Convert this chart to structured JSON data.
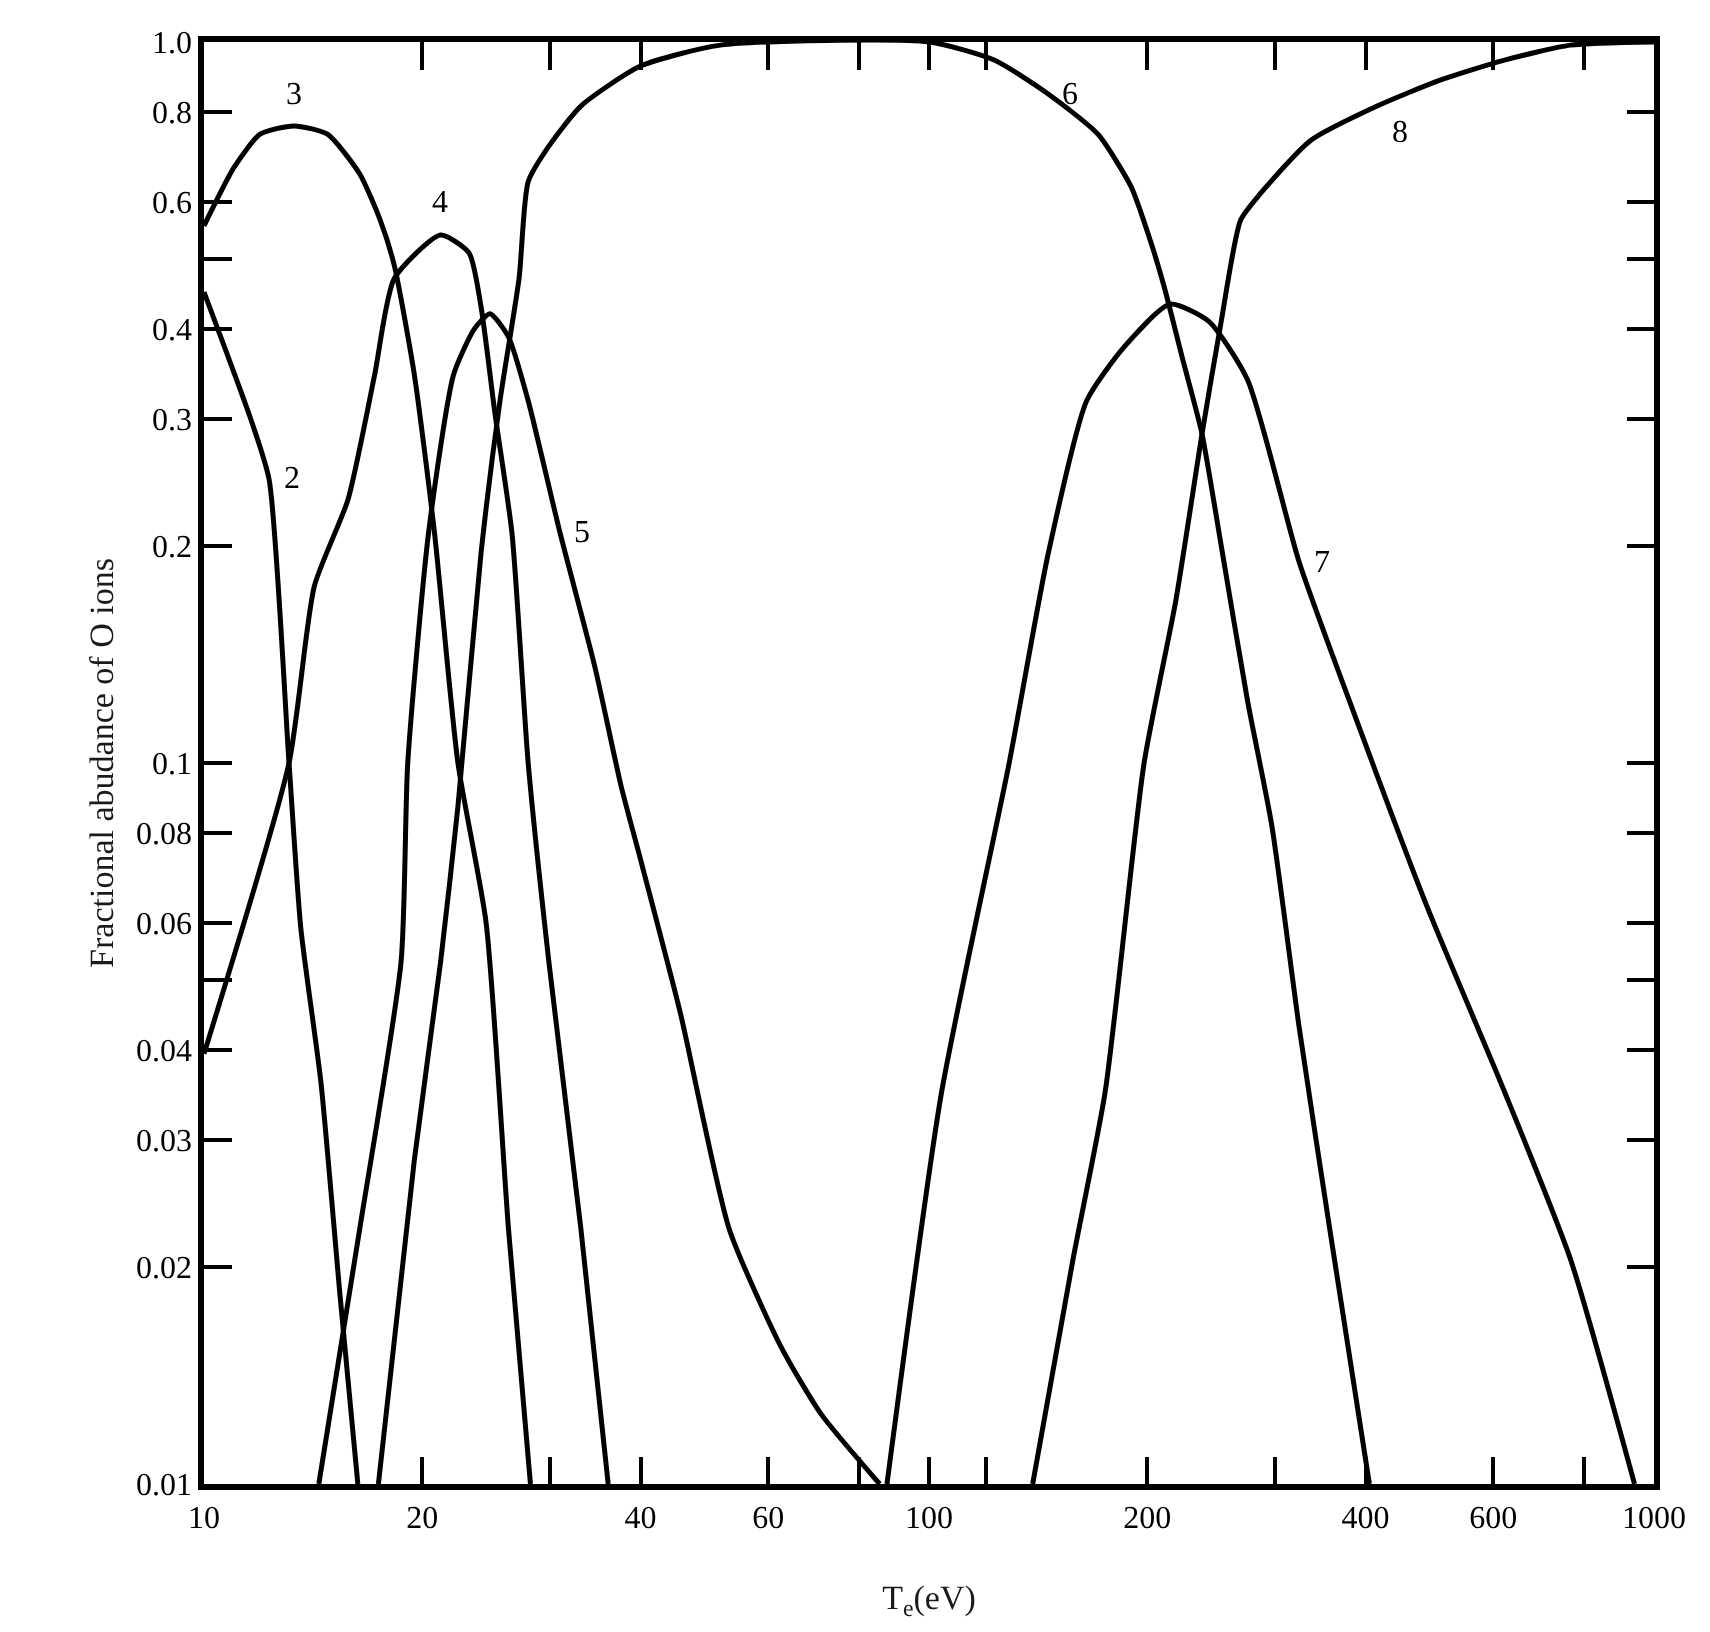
{
  "chart_data": {
    "type": "line",
    "xlabel": "T$_{e}$(eV)",
    "ylabel": "Fractional abudance of O ions",
    "log": "xy",
    "grid": false,
    "legend": false,
    "marker": "none",
    "line_style": "solid",
    "xlim": [
      10,
      1000
    ],
    "ylim": [
      0.01,
      1.0
    ],
    "xticks": [
      10,
      20,
      {
        "value": 30,
        "label": null
      },
      40,
      60,
      {
        "value": 80,
        "label": null
      },
      100,
      {
        "value": 120,
        "label": null
      },
      200,
      {
        "value": 300,
        "label": null
      },
      400,
      600,
      {
        "value": 800,
        "label": null
      },
      1000
    ],
    "yticks": [
      0.01,
      0.02,
      0.03,
      0.04,
      {
        "value": 0.05,
        "label": null
      },
      0.06,
      0.08,
      0.1,
      0.2,
      0.3,
      0.4,
      {
        "value": 0.5,
        "label": null
      },
      0.6,
      0.8,
      {
        "value": 1.0,
        "label": "1.0"
      }
    ],
    "series": [
      {
        "name": "2",
        "color": "#000000",
        "x": [
          10,
          11.6,
          12.3,
          13.1,
          13.6,
          14.5,
          15.4,
          16.3
        ],
        "values": [
          0.45,
          0.3,
          0.247,
          0.1,
          0.059,
          0.036,
          0.0183,
          0.01
        ]
      },
      {
        "name": "3",
        "color": "#000000",
        "x": [
          10,
          11,
          11.95,
          13.3,
          14.8,
          16.4,
          17.5,
          18.3,
          19.5,
          20.8,
          22.4,
          24.5,
          26.3,
          28.2
        ],
        "values": [
          0.556,
          0.67,
          0.745,
          0.765,
          0.745,
          0.656,
          0.566,
          0.49,
          0.346,
          0.208,
          0.1,
          0.06,
          0.0226,
          0.01
        ]
      },
      {
        "name": "4",
        "color": "#000000",
        "x": [
          10,
          13.1,
          14.2,
          15.8,
          17.2,
          18.3,
          21.2,
          23.2,
          24.1,
          25.2,
          26.6,
          28.0,
          29.9,
          33.1,
          36.1
        ],
        "values": [
          0.0395,
          0.1,
          0.176,
          0.232,
          0.346,
          0.47,
          0.54,
          0.51,
          0.43,
          0.305,
          0.208,
          0.1,
          0.053,
          0.0226,
          0.01
        ]
      },
      {
        "name": "5",
        "color": "#000000",
        "x": [
          14.4,
          16.4,
          18.7,
          19.1,
          20.4,
          22.1,
          23.6,
          24.8,
          26.3,
          28.0,
          31.0,
          34.6,
          37.6,
          40.0,
          45.4,
          53.0,
          62.5,
          71.0,
          85.5
        ],
        "values": [
          0.01,
          0.0226,
          0.053,
          0.1,
          0.208,
          0.346,
          0.4,
          0.42,
          0.39,
          0.318,
          0.208,
          0.136,
          0.093,
          0.0735,
          0.045,
          0.0226,
          0.0155,
          0.0125,
          0.01
        ]
      },
      {
        "name": "6",
        "color": "#000000",
        "x": [
          17.4,
          19.5,
          21.2,
          22.4,
          24.1,
          25.6,
          27.2,
          28.0,
          29.9,
          33.1,
          40.0,
          51.6,
          100,
          123,
          146,
          171,
          190,
          202,
          211,
          224,
          238,
          253,
          275,
          297,
          324,
          357,
          405
        ],
        "values": [
          0.01,
          0.0281,
          0.053,
          0.087,
          0.195,
          0.318,
          0.47,
          0.64,
          0.717,
          0.815,
          0.926,
          0.99,
          1.0,
          0.944,
          0.847,
          0.745,
          0.63,
          0.53,
          0.458,
          0.362,
          0.286,
          0.2,
          0.122,
          0.082,
          0.043,
          0.0226,
          0.01
        ]
      },
      {
        "name": "7",
        "color": "#000000",
        "x": [
          87.5,
          104,
          129,
          146,
          165,
          186,
          215,
          243,
          275,
          324,
          380,
          487,
          622,
          767,
          940
        ],
        "values": [
          0.01,
          0.0348,
          0.1,
          0.195,
          0.318,
          0.378,
          0.433,
          0.41,
          0.34,
          0.19,
          0.122,
          0.063,
          0.035,
          0.0205,
          0.01
        ]
      },
      {
        "name": "8",
        "color": "#000000",
        "x": [
          139,
          158,
          175,
          198,
          219,
          238,
          253,
          269,
          286,
          336,
          415,
          508,
          622,
          767,
          1000
        ],
        "values": [
          0.01,
          0.0205,
          0.035,
          0.1,
          0.168,
          0.286,
          0.41,
          0.566,
          0.615,
          0.73,
          0.815,
          0.886,
          0.944,
          0.99,
          1.0
        ]
      }
    ]
  }
}
